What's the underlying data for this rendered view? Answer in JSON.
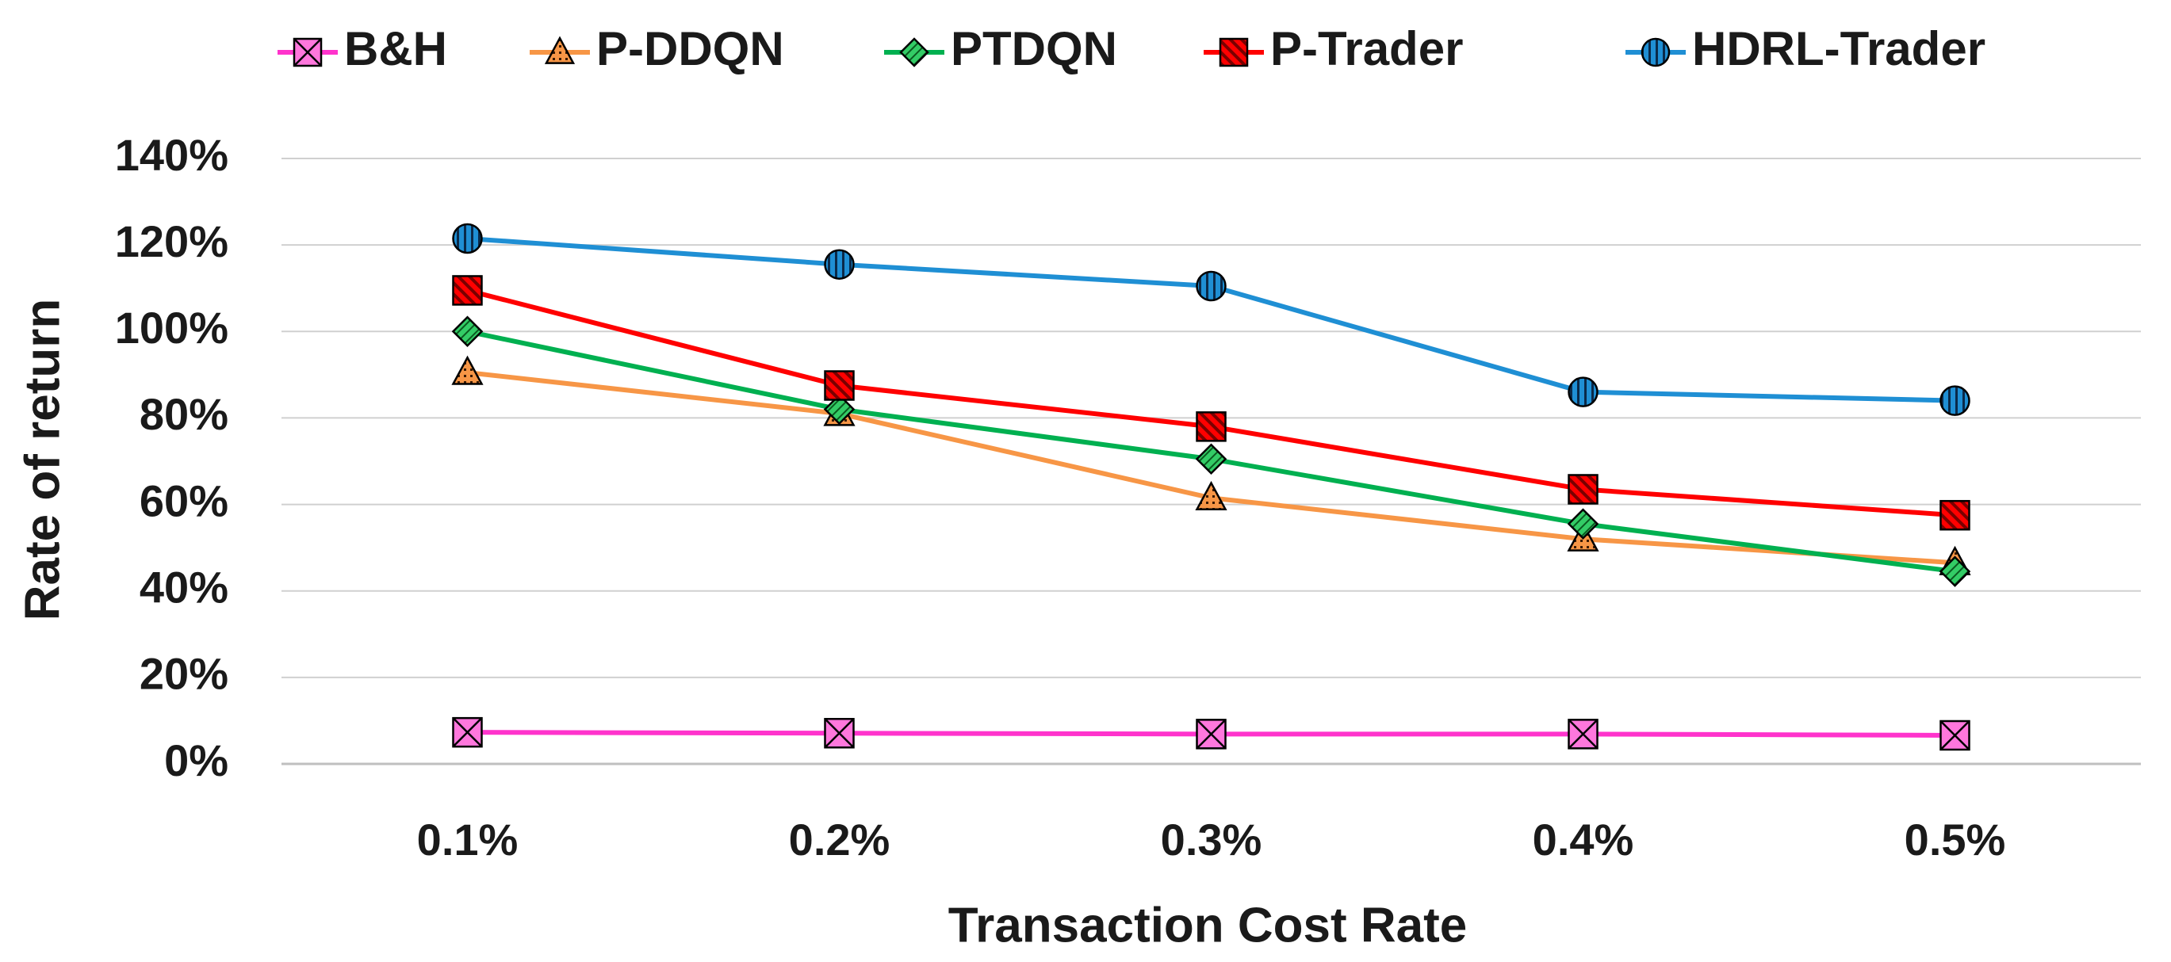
{
  "chart_data": {
    "type": "line",
    "title": "",
    "xlabel": "Transaction Cost Rate",
    "ylabel": "Rate of return",
    "categories": [
      "0.1%",
      "0.2%",
      "0.3%",
      "0.4%",
      "0.5%"
    ],
    "ylim": [
      0,
      140
    ],
    "yticks": [
      0,
      20,
      40,
      60,
      80,
      100,
      120,
      140
    ],
    "ytick_labels": [
      "0%",
      "20%",
      "40%",
      "60%",
      "80%",
      "100%",
      "120%",
      "140%"
    ],
    "grid": true,
    "legend_position": "top",
    "series": [
      {
        "name": "B&H",
        "color": "#ff33cc",
        "marker": "x-square",
        "marker_fill": "#ff77dd",
        "values": [
          7.3,
          7.1,
          6.9,
          6.9,
          6.6
        ]
      },
      {
        "name": "P-DDQN",
        "color": "#f79646",
        "marker": "triangle",
        "marker_fill": "#f79646",
        "values": [
          90.5,
          81,
          61.5,
          52,
          46.5
        ]
      },
      {
        "name": "PTDQN",
        "color": "#00b050",
        "marker": "diamond",
        "marker_fill": "#33cc66",
        "values": [
          100,
          82,
          70.5,
          55.5,
          44.5
        ]
      },
      {
        "name": "P-Trader",
        "color": "#ff0000",
        "marker": "square-hatched",
        "marker_fill": "#ff0000",
        "values": [
          109.5,
          87.5,
          78,
          63.5,
          57.5
        ]
      },
      {
        "name": "HDRL-Trader",
        "color": "#1f8fd4",
        "marker": "circle-striped",
        "marker_fill": "#1f8fd4",
        "values": [
          121.5,
          115.5,
          110.5,
          86,
          84
        ]
      }
    ]
  }
}
